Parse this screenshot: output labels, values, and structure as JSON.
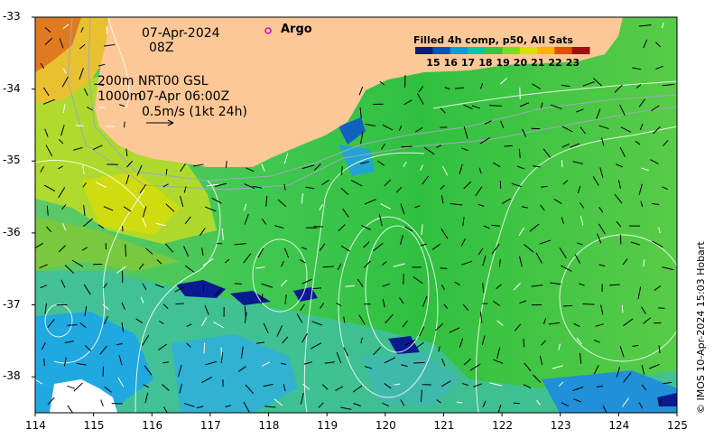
{
  "map": {
    "date": "07-Apr-2024",
    "time": "08Z",
    "depth_line_1": "200m",
    "depth_line_2": "1000m",
    "product_line_1": "NRT00 GSL",
    "product_line_2": "07-Apr 06:00Z",
    "scale_label": "0.5m/s (1kt 24h)",
    "argo_label": "Argo",
    "argo_marker_color": "#e000c0",
    "land_color": "#fdc897",
    "credit": "© IMOS 10-Apr-2024 15:03 Hobart"
  },
  "colorbar": {
    "title": "Filled 4h comp, p50, All Sats",
    "tick_labels": [
      "15",
      "16",
      "17",
      "18",
      "19",
      "20",
      "21",
      "22",
      "23"
    ],
    "colors": [
      "#0a1a80",
      "#0050c8",
      "#00a0e0",
      "#00c8a0",
      "#30c840",
      "#80d820",
      "#d8e000",
      "#ffb000",
      "#e05000",
      "#a01010"
    ]
  },
  "axes": {
    "x_ticks": [
      "114",
      "115",
      "116",
      "117",
      "118",
      "119",
      "120",
      "121",
      "122",
      "123",
      "124",
      "125"
    ],
    "y_ticks": [
      "-33",
      "-34",
      "-35",
      "-36",
      "-37",
      "-38"
    ],
    "x_range": [
      114,
      125
    ],
    "y_range": [
      -38.5,
      -33
    ]
  }
}
